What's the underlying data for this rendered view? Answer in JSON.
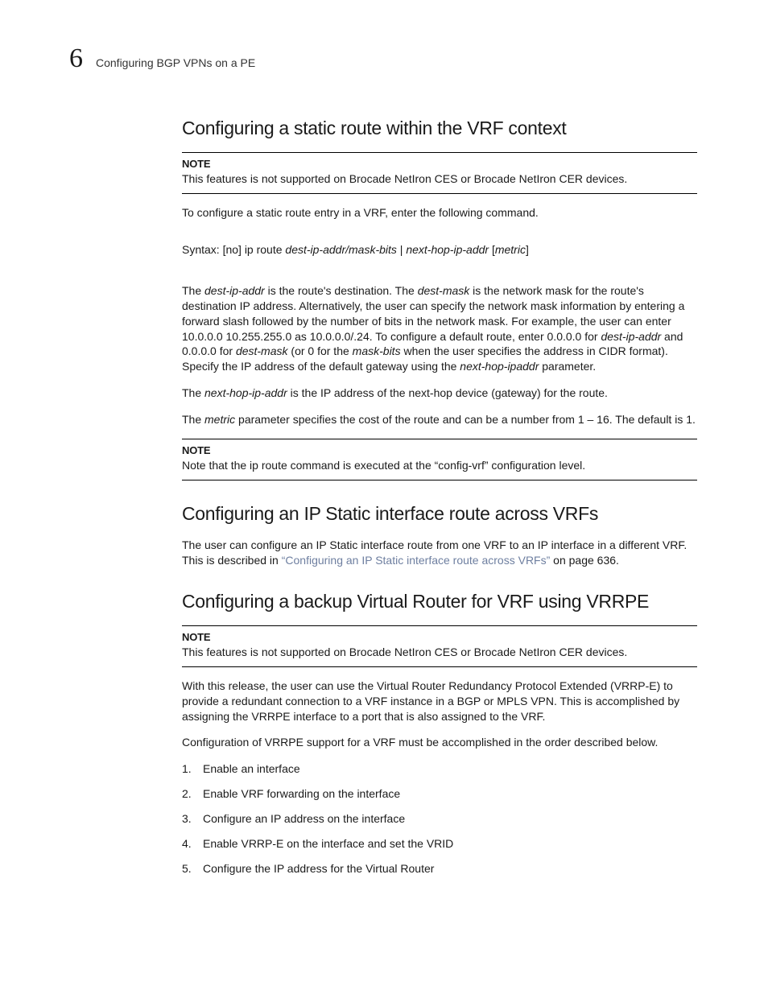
{
  "header": {
    "chapter_number": "6",
    "breadcrumb": "Configuring BGP VPNs on a PE"
  },
  "s1": {
    "title": "Configuring a static route within the VRF context",
    "note1_label": "NOTE",
    "note1_body": "This features is not supported on Brocade NetIron CES or Brocade NetIron CER devices.",
    "p1": "To configure a static route entry in a VRF, enter the following command.",
    "syntax_prefix": "Syntax:  [no] ip route  ",
    "syntax_arg1": "dest-ip-addr/mask-bits",
    "syntax_sep1": " | ",
    "syntax_arg2": "next-hop-ip-addr",
    "syntax_sep2": " [",
    "syntax_arg3": "metric",
    "syntax_sep3": "]",
    "p2_a": "The ",
    "p2_b": "dest-ip-addr",
    "p2_c": " is the route's destination. The ",
    "p2_d": "dest-mask",
    "p2_e": " is the network mask for the route's destination IP address. Alternatively, the user can specify the network mask information by entering a forward slash followed by the number of bits in the network mask. For example, the user can enter 10.0.0.0 10.255.255.0 as 10.0.0.0/.24. To configure a default route, enter 0.0.0.0 for ",
    "p2_f": "dest-ip-addr",
    "p2_g": " and 0.0.0.0 for ",
    "p2_h": "dest-mask",
    "p2_i": " (or 0 for the ",
    "p2_j": "mask-bits",
    "p2_k": " when the user specifies the address in CIDR format). Specify the IP address of the default gateway using the ",
    "p2_l": "next-hop-ipaddr",
    "p2_m": " parameter.",
    "p3_a": "The ",
    "p3_b": "next-hop-ip-addr",
    "p3_c": " is the IP address of the next-hop device (gateway) for the route.",
    "p4_a": "The ",
    "p4_b": "metric",
    "p4_c": " parameter specifies the cost of the route and can be a number from 1 – 16. The default is 1.",
    "note2_label": "NOTE",
    "note2_body": "Note that the ip route command is executed at the “config-vrf” configuration level."
  },
  "s2": {
    "title": "Configuring an IP Static interface route across VRFs",
    "p1_a": "The user can configure an IP Static interface route from one VRF to an IP interface in a different VRF. This is described in ",
    "p1_link": "“Configuring an IP Static interface route across VRFs”",
    "p1_b": " on page 636."
  },
  "s3": {
    "title": "Configuring a backup Virtual Router for VRF using VRRPE",
    "note_label": "NOTE",
    "note_body": "This features is not supported on Brocade NetIron CES or Brocade NetIron CER devices.",
    "p1": "With this release, the user can use the Virtual Router Redundancy Protocol Extended (VRRP-E) to provide a redundant connection to a VRF instance in a BGP or MPLS VPN. This is accomplished by assigning the VRRPE interface to a port that is also assigned to the VRF.",
    "p2": "Configuration of VRRPE support for a VRF must be accomplished in the order described below.",
    "steps": [
      "Enable an interface",
      "Enable VRF forwarding on the interface",
      "Configure an IP address on the interface",
      "Enable VRRP-E on the interface and set the VRID",
      "Configure the IP address for the Virtual Router"
    ]
  }
}
